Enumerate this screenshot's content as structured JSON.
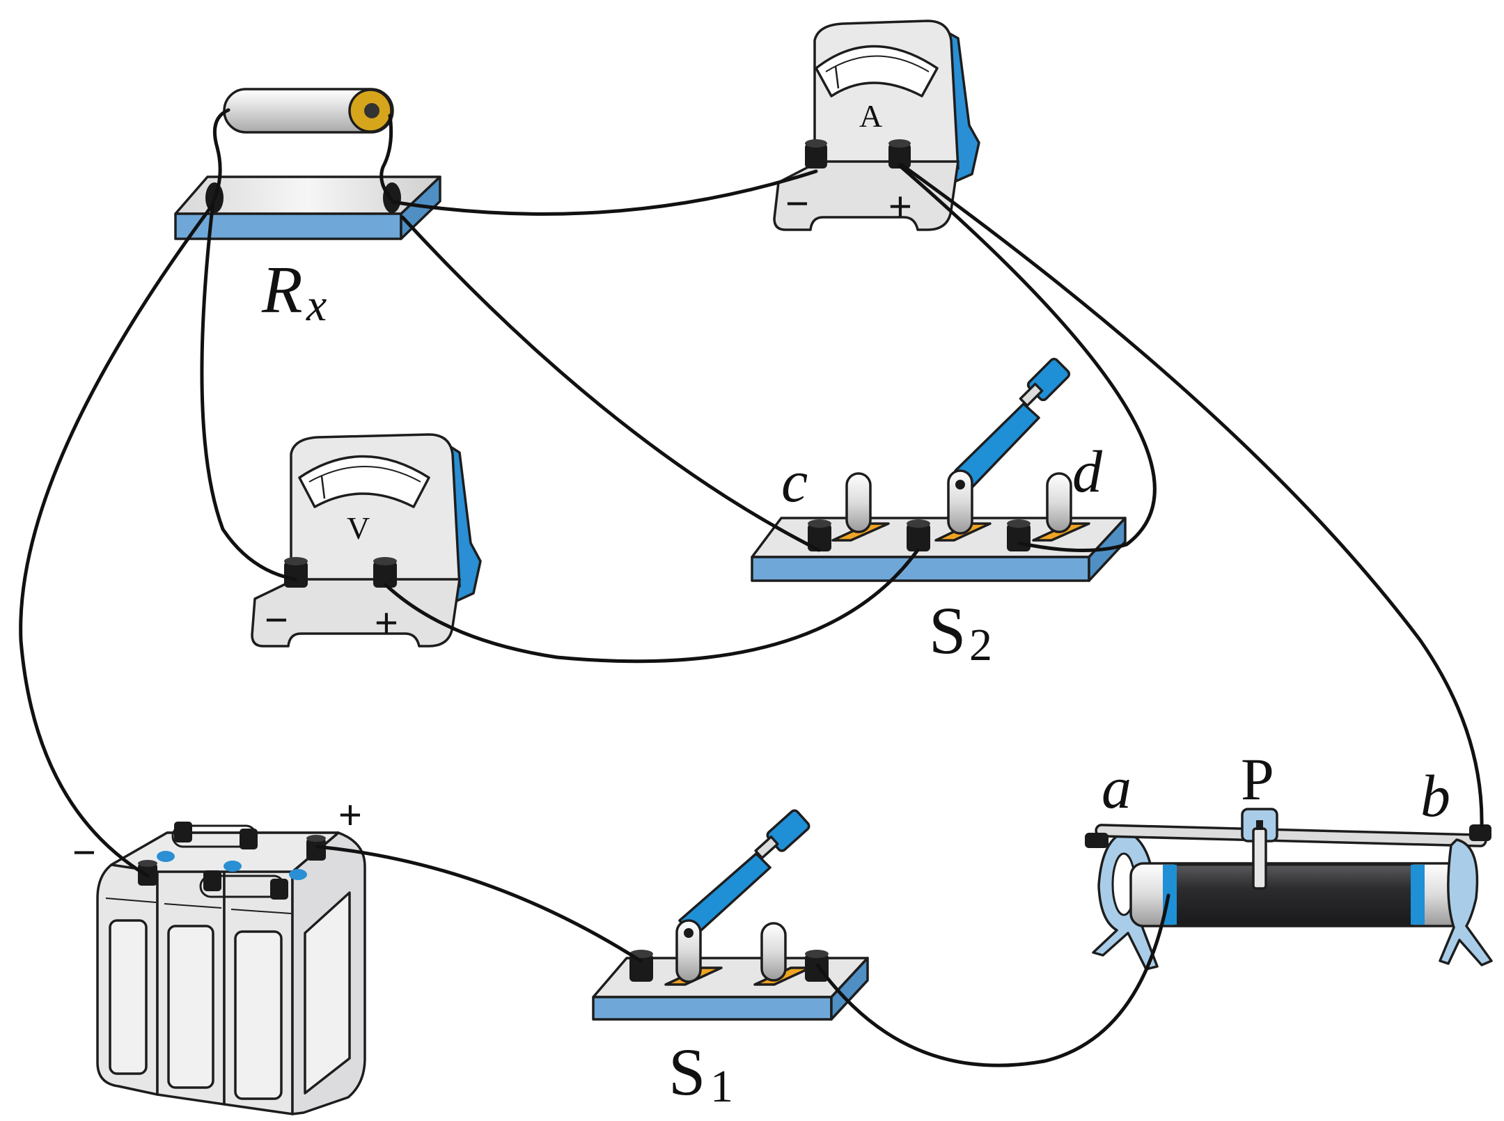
{
  "labels": {
    "rx_main": "R",
    "rx_sub": "x",
    "ammeter_letter": "A",
    "voltmeter_letter": "V",
    "ammeter_minus": "−",
    "ammeter_plus": "+",
    "voltmeter_minus": "−",
    "voltmeter_plus": "+",
    "switch2_main": "S",
    "switch2_sub": "2",
    "switch2_c": "c",
    "switch2_d": "d",
    "switch1_main": "S",
    "switch1_sub": "1",
    "rheostat_a": "a",
    "rheostat_p": "P",
    "rheostat_b": "b",
    "battery_minus": "−",
    "battery_plus": "+"
  },
  "colors": {
    "wire": "#111111",
    "base_blue": "#6fa8d8",
    "handle_blue": "#1f8fd6",
    "meter_blue": "#2a8fd4",
    "body_gray": "#e9e9ea",
    "terminal": "#1a1a1a",
    "contact_orange": "#f0a424",
    "resistor_gold": "#d6a51c",
    "coil_dark": "#2c2c2e"
  }
}
